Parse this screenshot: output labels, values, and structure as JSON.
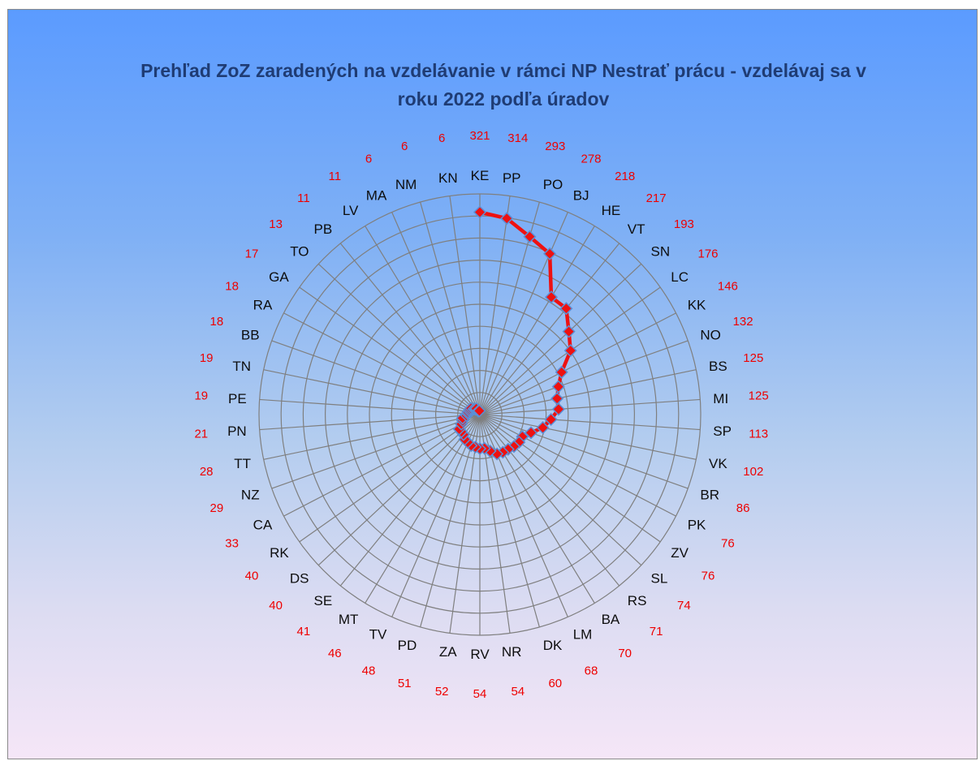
{
  "chart_data": {
    "type": "radar",
    "title": "Prehľad ZoZ zaradených na vzdelávanie v rámci NP Nestrať prácu - vzdelávaj sa v roku 2022 podľa úradov",
    "categories": [
      "KE",
      "PP",
      "PO",
      "BJ",
      "HE",
      "VT",
      "SN",
      "LC",
      "KK",
      "NO",
      "BS",
      "MI",
      "SP",
      "VK",
      "BR",
      "PK",
      "ZV",
      "SL",
      "RS",
      "BA",
      "LM",
      "DK",
      "NR",
      "RV",
      "ZA",
      "PD",
      "TV",
      "MT",
      "SE",
      "DS",
      "RK",
      "CA",
      "NZ",
      "TT",
      "PN",
      "PE",
      "TN",
      "BB",
      "RA",
      "GA",
      "TO",
      "PB",
      "LV",
      "MA",
      "NM",
      "KN"
    ],
    "values": [
      321,
      314,
      293,
      278,
      218,
      217,
      193,
      176,
      146,
      132,
      125,
      125,
      113,
      102,
      86,
      76,
      76,
      74,
      71,
      70,
      68,
      60,
      54,
      54,
      52,
      51,
      48,
      46,
      41,
      40,
      40,
      33,
      29,
      28,
      21,
      19,
      19,
      18,
      18,
      17,
      13,
      11,
      11,
      6,
      6,
      6
    ],
    "rmax": 350,
    "rings": 10,
    "grid": true,
    "data_labels": true,
    "colors": {
      "line": "#ee1111",
      "marker_fill": "#ee1111",
      "marker_edge": "#5b8fd6",
      "grid": "#7f7f7f",
      "category_label": "#0d0d0d",
      "value_label": "#ee0000",
      "title": "#1f3c74"
    }
  }
}
